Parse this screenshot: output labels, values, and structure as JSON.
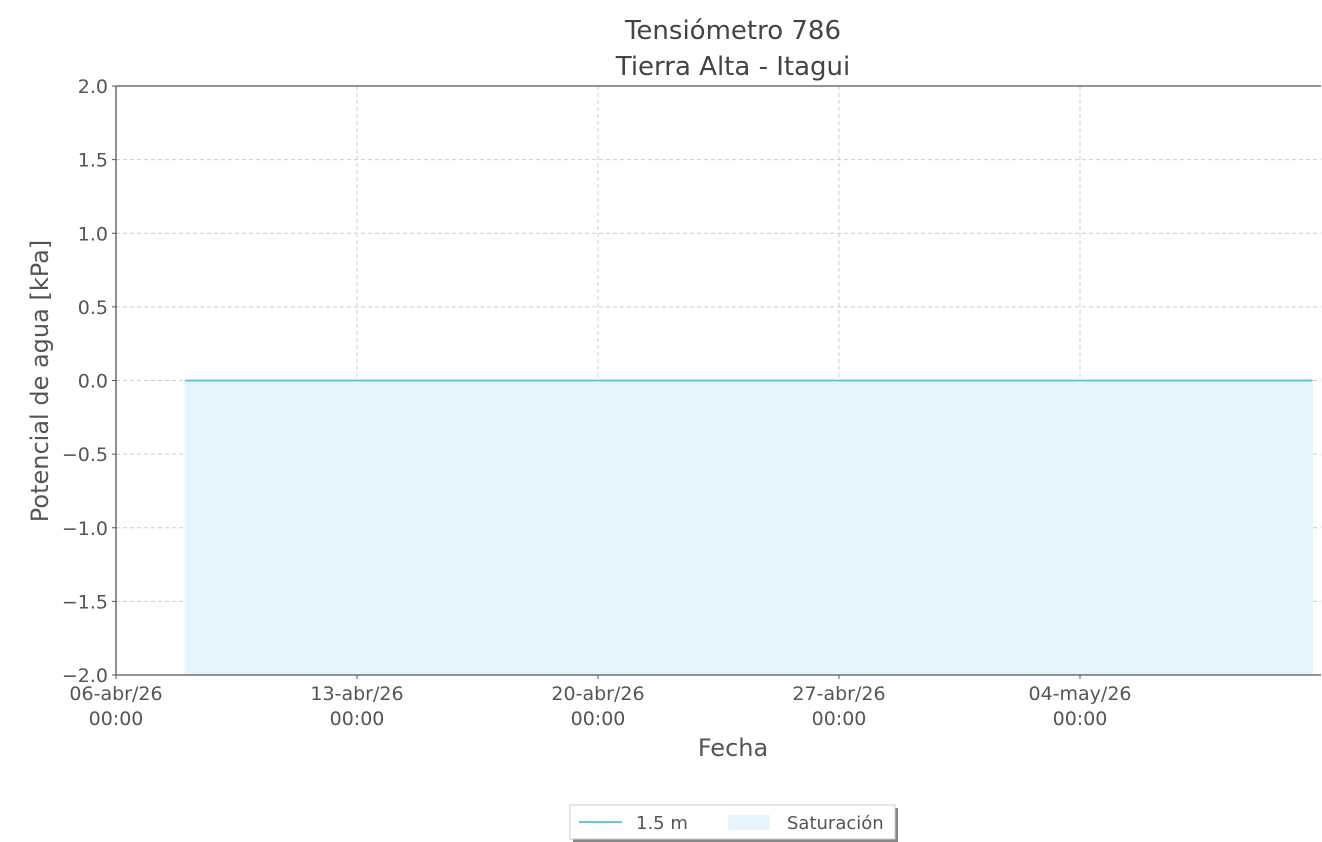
{
  "chart_data": {
    "type": "area",
    "title": "Tensiómetro 786",
    "subtitle": "Tierra Alta - Itagui",
    "xlabel": "Fecha",
    "ylabel": "Potencial de agua [kPa]",
    "ylim": [
      -2.0,
      2.0
    ],
    "xlim": [
      "2026-04-06T00:00",
      "2026-05-11T00:00"
    ],
    "yticks": [
      {
        "value": 2.0,
        "label": "2.0"
      },
      {
        "value": 1.5,
        "label": "1.5"
      },
      {
        "value": 1.0,
        "label": "1.0"
      },
      {
        "value": 0.5,
        "label": "0.5"
      },
      {
        "value": 0.0,
        "label": "0.0"
      },
      {
        "value": -0.5,
        "label": "−0.5"
      },
      {
        "value": -1.0,
        "label": "−1.0"
      },
      {
        "value": -1.5,
        "label": "−1.5"
      },
      {
        "value": -2.0,
        "label": "−2.0"
      }
    ],
    "xticks": [
      {
        "value": "2026-04-06T00:00",
        "label1": "06-abr/26",
        "label2": "00:00"
      },
      {
        "value": "2026-04-13T00:00",
        "label1": "13-abr/26",
        "label2": "00:00"
      },
      {
        "value": "2026-04-20T00:00",
        "label1": "20-abr/26",
        "label2": "00:00"
      },
      {
        "value": "2026-04-27T00:00",
        "label1": "27-abr/26",
        "label2": "00:00"
      },
      {
        "value": "2026-05-04T00:00",
        "label1": "04-may/26",
        "label2": "00:00"
      }
    ],
    "grid": true,
    "legend_position": "bottom-center",
    "series": [
      {
        "name": "1.5 m",
        "kind": "line",
        "color": "#5bc0c8",
        "x": [
          "2026-04-08T00:00",
          "2026-05-10T18:00"
        ],
        "y": [
          0.0,
          0.0
        ]
      },
      {
        "name": "Saturación",
        "kind": "fill",
        "color": "#e6f4fd",
        "x": [
          "2026-04-08T00:00",
          "2026-05-10T18:00"
        ],
        "y_top": [
          0.0,
          0.0
        ],
        "y_bottom": [
          -2.0,
          -2.0
        ]
      }
    ]
  }
}
